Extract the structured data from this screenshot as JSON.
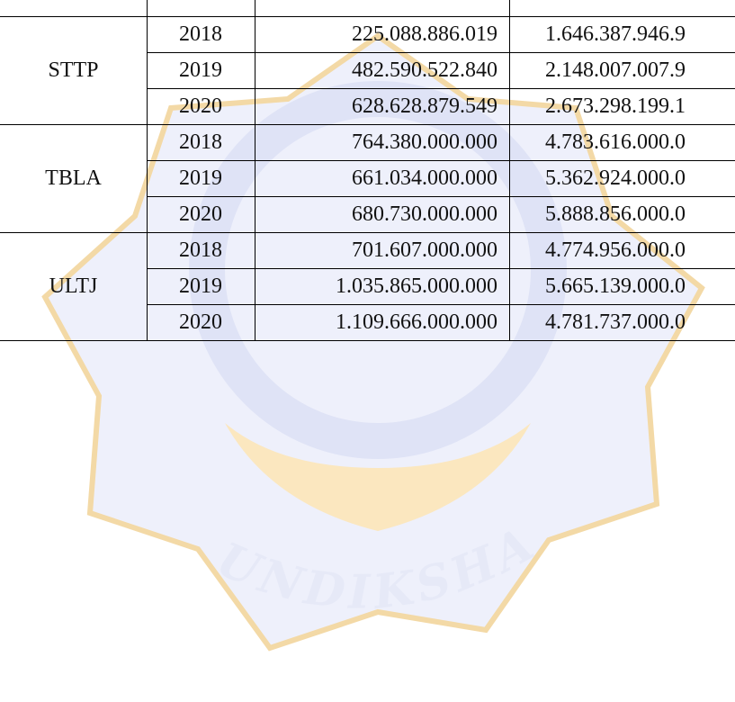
{
  "table": {
    "groups": [
      {
        "name": "STTP",
        "rows": [
          [
            "2018",
            "225.088.886.019",
            "1.646.387.946.9"
          ],
          [
            "2019",
            "482.590.522.840",
            "2.148.007.007.9"
          ],
          [
            "2020",
            "628.628.879.549",
            "2.673.298.199.1"
          ]
        ]
      },
      {
        "name": "TBLA",
        "rows": [
          [
            "2018",
            "764.380.000.000",
            "4.783.616.000.0"
          ],
          [
            "2019",
            "661.034.000.000",
            "5.362.924.000.0"
          ],
          [
            "2020",
            "680.730.000.000",
            "5.888.856.000.0"
          ]
        ]
      },
      {
        "name": "ULTJ",
        "rows": [
          [
            "2018",
            "701.607.000.000",
            "4.774.956.000.0"
          ],
          [
            "2019",
            "1.035.865.000.000",
            "5.665.139.000.0"
          ],
          [
            "2020",
            "1.109.666.000.000",
            "4.781.737.000.0"
          ]
        ]
      }
    ]
  },
  "watermark": {
    "text": "UNDIKSHA"
  }
}
